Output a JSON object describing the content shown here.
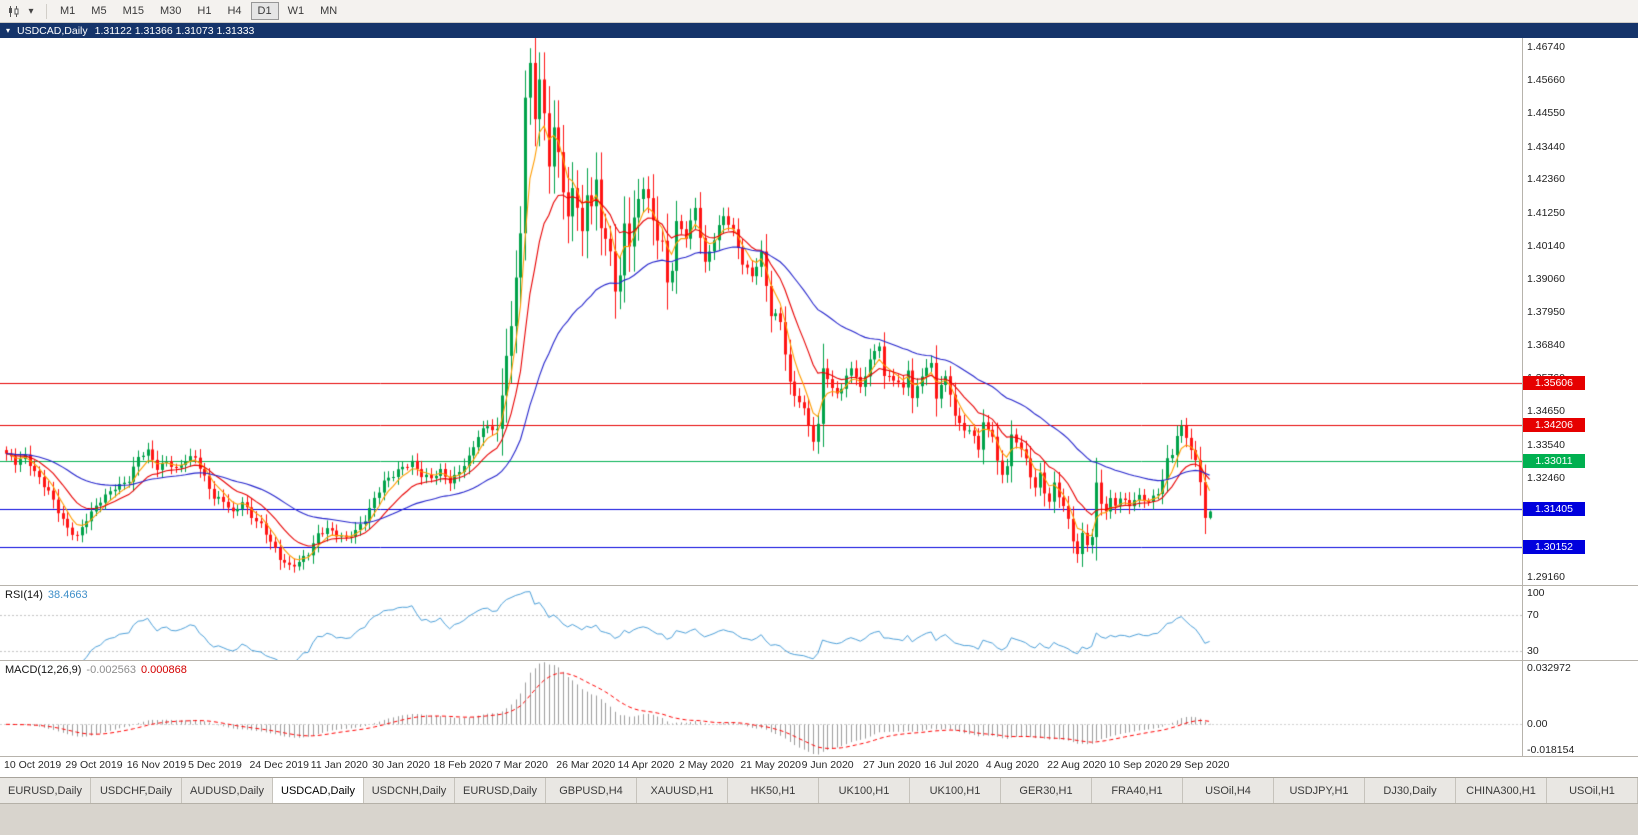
{
  "toolbar": {
    "chart_icon": "candlestick-chart-icon",
    "dropdown_icon": "chevron-down-icon",
    "timeframes": [
      "M1",
      "M5",
      "M15",
      "M30",
      "H1",
      "H4",
      "D1",
      "W1",
      "MN"
    ],
    "active_timeframe": "D1"
  },
  "window": {
    "title_symbol": "USDCAD,Daily",
    "ohlc_text": "1.31122 1.31366 1.31073 1.31333",
    "ohlc": {
      "open": "1.31122",
      "high": "1.31366",
      "low": "1.31073",
      "close": "1.31333"
    }
  },
  "chart_data": {
    "type": "candlestick",
    "title": "USDCAD,Daily",
    "x_labels": [
      "10 Oct 2019",
      "29 Oct 2019",
      "16 Nov 2019",
      "5 Dec 2019",
      "24 Dec 2019",
      "11 Jan 2020",
      "30 Jan 2020",
      "18 Feb 2020",
      "7 Mar 2020",
      "26 Mar 2020",
      "14 Apr 2020",
      "2 May 2020",
      "21 May 2020",
      "9 Jun 2020",
      "27 Jun 2020",
      "16 Jul 2020",
      "4 Aug 2020",
      "22 Aug 2020",
      "10 Sep 2020",
      "29 Sep 2020"
    ],
    "candles_per_label": 13,
    "candle_count": 256,
    "price_axis_ticks": [
      "1.46740",
      "1.45660",
      "1.44550",
      "1.43440",
      "1.42360",
      "1.41250",
      "1.40140",
      "1.39060",
      "1.37950",
      "1.36840",
      "1.35760",
      "1.34650",
      "1.33540",
      "1.32460",
      "1.31350",
      "1.30240",
      "1.29160"
    ],
    "visible_price_range": [
      1.28895,
      1.47039
    ],
    "close_anchors": [
      [
        0,
        1.3325
      ],
      [
        2,
        1.329
      ],
      [
        4,
        1.3315
      ],
      [
        6,
        1.327
      ],
      [
        9,
        1.32
      ],
      [
        11,
        1.313
      ],
      [
        13,
        1.3075
      ],
      [
        15,
        1.3055
      ],
      [
        17,
        1.311
      ],
      [
        20,
        1.3165
      ],
      [
        23,
        1.3215
      ],
      [
        26,
        1.324
      ],
      [
        28,
        1.331
      ],
      [
        30,
        1.333
      ],
      [
        32,
        1.328
      ],
      [
        34,
        1.3305
      ],
      [
        36,
        1.327
      ],
      [
        38,
        1.33
      ],
      [
        40,
        1.3315
      ],
      [
        42,
        1.325
      ],
      [
        44,
        1.318
      ],
      [
        46,
        1.3165
      ],
      [
        48,
        1.3125
      ],
      [
        50,
        1.317
      ],
      [
        52,
        1.312
      ],
      [
        54,
        1.3085
      ],
      [
        56,
        1.303
      ],
      [
        58,
        1.298
      ],
      [
        60,
        1.2955
      ],
      [
        62,
        1.2965
      ],
      [
        64,
        1.299
      ],
      [
        66,
        1.3055
      ],
      [
        68,
        1.308
      ],
      [
        70,
        1.306
      ],
      [
        72,
        1.304
      ],
      [
        74,
        1.3065
      ],
      [
        76,
        1.311
      ],
      [
        78,
        1.318
      ],
      [
        80,
        1.323
      ],
      [
        82,
        1.325
      ],
      [
        84,
        1.328
      ],
      [
        86,
        1.33
      ],
      [
        88,
        1.3255
      ],
      [
        90,
        1.324
      ],
      [
        92,
        1.3265
      ],
      [
        94,
        1.3235
      ],
      [
        96,
        1.327
      ],
      [
        98,
        1.331
      ],
      [
        100,
        1.338
      ],
      [
        102,
        1.342
      ],
      [
        104,
        1.34
      ],
      [
        105,
        1.354
      ],
      [
        106,
        1.366
      ],
      [
        107,
        1.372
      ],
      [
        108,
        1.391
      ],
      [
        109,
        1.405
      ],
      [
        110,
        1.448
      ],
      [
        111,
        1.464
      ],
      [
        112,
        1.445
      ],
      [
        113,
        1.456
      ],
      [
        114,
        1.448
      ],
      [
        115,
        1.428
      ],
      [
        116,
        1.438
      ],
      [
        117,
        1.433
      ],
      [
        118,
        1.418
      ],
      [
        119,
        1.409
      ],
      [
        120,
        1.423
      ],
      [
        121,
        1.415
      ],
      [
        122,
        1.406
      ],
      [
        123,
        1.421
      ],
      [
        124,
        1.414
      ],
      [
        125,
        1.421
      ],
      [
        126,
        1.408
      ],
      [
        127,
        1.402
      ],
      [
        128,
        1.398
      ],
      [
        129,
        1.389
      ],
      [
        130,
        1.392
      ],
      [
        131,
        1.409
      ],
      [
        132,
        1.404
      ],
      [
        134,
        1.415
      ],
      [
        135,
        1.421
      ],
      [
        137,
        1.409
      ],
      [
        139,
        1.403
      ],
      [
        140,
        1.39
      ],
      [
        141,
        1.394
      ],
      [
        142,
        1.409
      ],
      [
        144,
        1.404
      ],
      [
        146,
        1.414
      ],
      [
        148,
        1.396
      ],
      [
        150,
        1.404
      ],
      [
        152,
        1.411
      ],
      [
        154,
        1.406
      ],
      [
        156,
        1.396
      ],
      [
        158,
        1.392
      ],
      [
        160,
        1.398
      ],
      [
        162,
        1.378
      ],
      [
        164,
        1.377
      ],
      [
        166,
        1.356
      ],
      [
        168,
        1.35
      ],
      [
        170,
        1.342
      ],
      [
        171,
        1.336
      ],
      [
        172,
        1.341
      ],
      [
        173,
        1.362
      ],
      [
        175,
        1.354
      ],
      [
        177,
        1.354
      ],
      [
        179,
        1.361
      ],
      [
        181,
        1.354
      ],
      [
        183,
        1.364
      ],
      [
        185,
        1.369
      ],
      [
        186,
        1.358
      ],
      [
        188,
        1.357
      ],
      [
        190,
        1.354
      ],
      [
        191,
        1.361
      ],
      [
        192,
        1.351
      ],
      [
        194,
        1.359
      ],
      [
        196,
        1.362
      ],
      [
        197,
        1.351
      ],
      [
        199,
        1.358
      ],
      [
        200,
        1.353
      ],
      [
        201,
        1.345
      ],
      [
        203,
        1.341
      ],
      [
        205,
        1.338
      ],
      [
        206,
        1.334
      ],
      [
        207,
        1.342
      ],
      [
        209,
        1.339
      ],
      [
        210,
        1.33
      ],
      [
        211,
        1.326
      ],
      [
        212,
        1.329
      ],
      [
        213,
        1.338
      ],
      [
        215,
        1.334
      ],
      [
        216,
        1.33
      ],
      [
        217,
        1.325
      ],
      [
        218,
        1.322
      ],
      [
        219,
        1.326
      ],
      [
        220,
        1.32
      ],
      [
        221,
        1.317
      ],
      [
        222,
        1.322
      ],
      [
        223,
        1.318
      ],
      [
        224,
        1.315
      ],
      [
        225,
        1.31
      ],
      [
        226,
        1.304
      ],
      [
        227,
        1.2998
      ],
      [
        228,
        1.306
      ],
      [
        229,
        1.303
      ],
      [
        230,
        1.305
      ],
      [
        231,
        1.322
      ],
      [
        232,
        1.316
      ],
      [
        233,
        1.313
      ],
      [
        234,
        1.317
      ],
      [
        235,
        1.316
      ],
      [
        236,
        1.318
      ],
      [
        238,
        1.316
      ],
      [
        240,
        1.318
      ],
      [
        242,
        1.316
      ],
      [
        244,
        1.32
      ],
      [
        245,
        1.324
      ],
      [
        246,
        1.331
      ],
      [
        247,
        1.333
      ],
      [
        248,
        1.338
      ],
      [
        249,
        1.341
      ],
      [
        250,
        1.338
      ],
      [
        251,
        1.333
      ],
      [
        252,
        1.33
      ],
      [
        253,
        1.324
      ],
      [
        254,
        1.3112
      ],
      [
        255,
        1.31333
      ]
    ],
    "last_candle": {
      "open": 1.31122,
      "high": 1.31366,
      "low": 1.31073,
      "close": 1.31333
    },
    "peak_high": 1.467,
    "horizontal_levels": [
      {
        "price": 1.35606,
        "label": "1.35606",
        "color": "#e60000"
      },
      {
        "price": 1.34206,
        "label": "1.34206",
        "color": "#e60000"
      },
      {
        "price": 1.33011,
        "label": "1.33011",
        "color": "#00b050"
      },
      {
        "price": 1.31405,
        "label": "1.31405",
        "color": "#0000dd"
      },
      {
        "price": 1.30152,
        "label": "1.30152",
        "color": "#0000dd"
      }
    ],
    "moving_averages": [
      {
        "period": 5,
        "color": "#ff9c00"
      },
      {
        "period": 13,
        "color": "#e80000"
      },
      {
        "period": 40,
        "color": "#2424cc"
      }
    ],
    "bull_color": "#00a24a",
    "bear_color": "#ff1414"
  },
  "rsi_panel": {
    "name": "RSI(14)",
    "value": "38.4663",
    "period": 14,
    "axis_ticks": [
      "100",
      "70",
      "30"
    ],
    "level_lines": [
      70,
      30
    ],
    "scale_range": [
      20,
      103
    ],
    "line_color": "#4c9fd8"
  },
  "macd_panel": {
    "name": "MACD(12,26,9)",
    "value_macd": "-0.002563",
    "value_signal": "0.000868",
    "fast": 12,
    "slow": 26,
    "signal": 9,
    "axis_ticks": {
      "top": "0.032972",
      "zero": "0.00",
      "bottom": "-0.018154"
    },
    "scale_range": [
      -0.018154,
      0.032972
    ],
    "histogram_color": "#9c9c9c",
    "signal_color": "#ff0000"
  },
  "tabs": {
    "items": [
      "EURUSD,Daily",
      "USDCHF,Daily",
      "AUDUSD,Daily",
      "USDCAD,Daily",
      "USDCNH,Daily",
      "EURUSD,Daily",
      "GBPUSD,H4",
      "XAUUSD,H1",
      "HK50,H1",
      "UK100,H1",
      "UK100,H1",
      "GER30,H1",
      "FRA40,H1",
      "USOil,H4",
      "USDJPY,H1",
      "DJ30,Daily",
      "CHINA300,H1",
      "USOil,H1"
    ],
    "active_index": 3
  }
}
